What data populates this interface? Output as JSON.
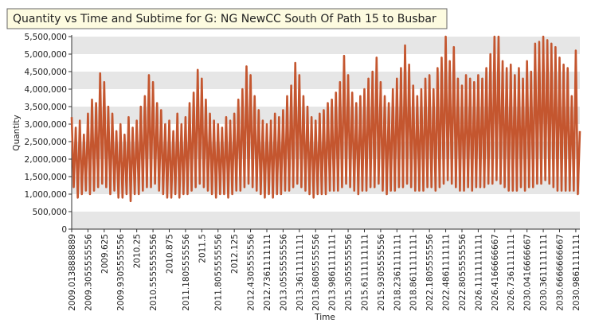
{
  "chart_data": {
    "type": "line",
    "title": "Quantity vs Time and Subtime for G: NG NewCC South Of Path 15 to Busbar",
    "x_label": "Time",
    "y_label": "Quantity",
    "categories": [
      "2009.0138888889",
      null,
      null,
      null,
      null,
      null,
      null,
      null,
      "2009.3055555556",
      null,
      null,
      null,
      null,
      null,
      null,
      null,
      "2009.625",
      null,
      null,
      null,
      null,
      null,
      null,
      null,
      "2009.9305555556",
      null,
      null,
      null,
      null,
      null,
      null,
      null,
      "2010.25",
      null,
      null,
      null,
      null,
      null,
      null,
      null,
      "2010.5555555556",
      null,
      null,
      null,
      null,
      null,
      null,
      null,
      "2010.875",
      null,
      null,
      null,
      null,
      null,
      null,
      null,
      "2011.1805555556",
      null,
      null,
      null,
      null,
      null,
      null,
      null,
      "2011.5",
      null,
      null,
      null,
      null,
      null,
      null,
      null,
      "2011.8055555556",
      null,
      null,
      null,
      null,
      null,
      null,
      null,
      "2012.125",
      null,
      null,
      null,
      null,
      null,
      null,
      null,
      "2012.4305555556",
      null,
      null,
      null,
      null,
      null,
      null,
      null,
      "2012.7361111111",
      null,
      null,
      null,
      null,
      null,
      null,
      null,
      "2013.0555555556",
      null,
      null,
      null,
      null,
      null,
      null,
      null,
      "2013.3611111111",
      null,
      null,
      null,
      null,
      null,
      null,
      null,
      "2013.6805555556",
      null,
      null,
      null,
      null,
      null,
      null,
      null,
      "2013.9861111111",
      null,
      null,
      null,
      null,
      null,
      null,
      null,
      "2015.3055555556",
      null,
      null,
      null,
      null,
      null,
      null,
      null,
      "2015.6111111111",
      null,
      null,
      null,
      null,
      null,
      null,
      null,
      "2015.9305555556",
      null,
      null,
      null,
      null,
      null,
      null,
      null,
      "2018.2361111111",
      null,
      null,
      null,
      null,
      null,
      null,
      null,
      "2018.8611111111",
      null,
      null,
      null,
      null,
      null,
      null,
      null,
      "2022.1805555556",
      null,
      null,
      null,
      null,
      null,
      null,
      null,
      "2022.4861111111",
      null,
      null,
      null,
      null,
      null,
      null,
      null,
      "2022.8055555556",
      null,
      null,
      null,
      null,
      null,
      null,
      null,
      "2026.1111111111",
      null,
      null,
      null,
      null,
      null,
      null,
      null,
      "2026.4166666667",
      null,
      null,
      null,
      null,
      null,
      null,
      null,
      "2026.7361111111",
      null,
      null,
      null,
      null,
      null,
      null,
      null,
      "2030.0416666667",
      null,
      null,
      null,
      null,
      null,
      null,
      null,
      "2030.3611111111",
      null,
      null,
      null,
      null,
      null,
      null,
      null,
      "2030.6666666667",
      null,
      null,
      null,
      null,
      null,
      null,
      null,
      "2030.9861111111",
      null,
      null
    ],
    "values": [
      3200000,
      1200000,
      2900000,
      900000,
      3100000,
      1000000,
      2700000,
      1100000,
      3300000,
      1000000,
      3700000,
      1100000,
      3600000,
      1200000,
      4450000,
      1300000,
      4200000,
      1200000,
      3500000,
      1000000,
      3300000,
      1100000,
      2800000,
      900000,
      3000000,
      900000,
      2700000,
      1000000,
      3200000,
      800000,
      2900000,
      1000000,
      3100000,
      1000000,
      3500000,
      1100000,
      3800000,
      1200000,
      4400000,
      1200000,
      4200000,
      1300000,
      3600000,
      1100000,
      3400000,
      1000000,
      3000000,
      900000,
      3100000,
      900000,
      2800000,
      1000000,
      3300000,
      900000,
      3000000,
      1000000,
      3200000,
      1000000,
      3600000,
      1100000,
      3900000,
      1200000,
      4550000,
      1300000,
      4300000,
      1200000,
      3700000,
      1100000,
      3300000,
      1000000,
      3100000,
      900000,
      3000000,
      1000000,
      2900000,
      1000000,
      3200000,
      900000,
      3100000,
      1000000,
      3300000,
      1100000,
      3700000,
      1100000,
      4000000,
      1200000,
      4650000,
      1300000,
      4400000,
      1200000,
      3800000,
      1100000,
      3400000,
      1000000,
      3100000,
      900000,
      3000000,
      1000000,
      3100000,
      900000,
      3300000,
      1000000,
      3200000,
      1000000,
      3400000,
      1100000,
      3800000,
      1100000,
      4100000,
      1200000,
      4750000,
      1300000,
      4400000,
      1200000,
      3800000,
      1100000,
      3500000,
      1000000,
      3200000,
      900000,
      3100000,
      1000000,
      3300000,
      1000000,
      3400000,
      1000000,
      3600000,
      1100000,
      3700000,
      1100000,
      3900000,
      1100000,
      4200000,
      1200000,
      4950000,
      1300000,
      4400000,
      1200000,
      3900000,
      1100000,
      3600000,
      1000000,
      3800000,
      1100000,
      4000000,
      1100000,
      4300000,
      1200000,
      4500000,
      1200000,
      4900000,
      1300000,
      4200000,
      1100000,
      3800000,
      1000000,
      3600000,
      1100000,
      4000000,
      1100000,
      4300000,
      1200000,
      4600000,
      1200000,
      5250000,
      1300000,
      4700000,
      1200000,
      4100000,
      1100000,
      3800000,
      1100000,
      4000000,
      1100000,
      4300000,
      1200000,
      4400000,
      1200000,
      4000000,
      1100000,
      4600000,
      1200000,
      4900000,
      1300000,
      5500000,
      1400000,
      4800000,
      1300000,
      5200000,
      1200000,
      4300000,
      1100000,
      4100000,
      1100000,
      4400000,
      1200000,
      4300000,
      1100000,
      4200000,
      1200000,
      4400000,
      1200000,
      4300000,
      1200000,
      4600000,
      1300000,
      5000000,
      1300000,
      5500000,
      1400000,
      5500000,
      1300000,
      4800000,
      1200000,
      4600000,
      1100000,
      4700000,
      1100000,
      4400000,
      1100000,
      4600000,
      1200000,
      4300000,
      1100000,
      4800000,
      1200000,
      4500000,
      1200000,
      5300000,
      1300000,
      5350000,
      1300000,
      5500000,
      1400000,
      5400000,
      1300000,
      5300000,
      1200000,
      5200000,
      1100000,
      4900000,
      1100000,
      4700000,
      1100000,
      4600000,
      1100000,
      3800000,
      1100000,
      5100000,
      1000000,
      2800000
    ],
    "color": "#c4562f",
    "ylim": [
      0,
      5500000
    ],
    "yticks": [
      0,
      {
        "value": 500000,
        "label": "500,000"
      },
      {
        "value": 1000000,
        "label": "1,000,000"
      },
      {
        "value": 1500000,
        "label": "1,500,000"
      },
      {
        "value": 2000000,
        "label": "2,000,000"
      },
      {
        "value": 2500000,
        "label": "2,500,000"
      },
      {
        "value": 3000000,
        "label": "3,000,000"
      },
      {
        "value": 3500000,
        "label": "3,500,000"
      },
      {
        "value": 4000000,
        "label": "4,000,000"
      },
      {
        "value": 4500000,
        "label": "4,500,000"
      },
      {
        "value": 5000000,
        "label": "5,000,000"
      },
      {
        "value": 5500000,
        "label": "5,500,000"
      }
    ],
    "grid": true
  }
}
